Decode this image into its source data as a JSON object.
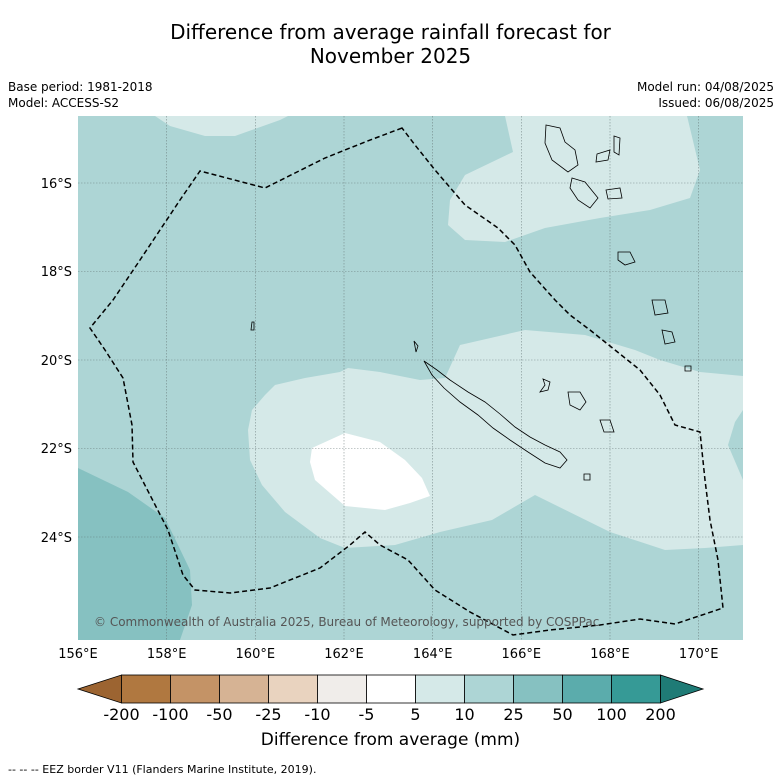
{
  "title_line1": "Difference from average rainfall forecast for",
  "title_line2": "November 2025",
  "base_period": "Base period: 1981-2018",
  "model": "Model: ACCESS-S2",
  "model_run": "Model run: 04/08/2025",
  "issued": "Issued: 06/08/2025",
  "copyright": "© Commonwealth of Australia 2025, Bureau of Meteorology, supported by COSPPac",
  "lat_labels": [
    "16°S",
    "18°S",
    "20°S",
    "22°S",
    "24°S"
  ],
  "lon_labels": [
    "156°E",
    "158°E",
    "160°E",
    "162°E",
    "164°E",
    "166°E",
    "168°E",
    "170°E"
  ],
  "colorbar": {
    "labels": [
      "-200",
      "-100",
      "-50",
      "-25",
      "-10",
      "-5",
      "5",
      "10",
      "25",
      "50",
      "100",
      "200"
    ],
    "colors": [
      "#9c6431",
      "#b07840",
      "#c49366",
      "#d6b394",
      "#e9d3bf",
      "#f0edea",
      "#ffffff",
      "#d5e9e8",
      "#add5d5",
      "#86c1c1",
      "#5bacac",
      "#369a96",
      "#1f7b76"
    ],
    "title": "Difference from average (mm)"
  },
  "footnote": "--  --  -- EEZ border V11 (Flanders Marine Institute, 2019).",
  "legend_colors": {
    "base_25_50": "#add5d5",
    "cat_10_25": "#d5e9e8",
    "cat_5_10": "#ffffff",
    "cat_50_100": "#86c1c1",
    "grid": "#607070",
    "eez": "#000000"
  }
}
